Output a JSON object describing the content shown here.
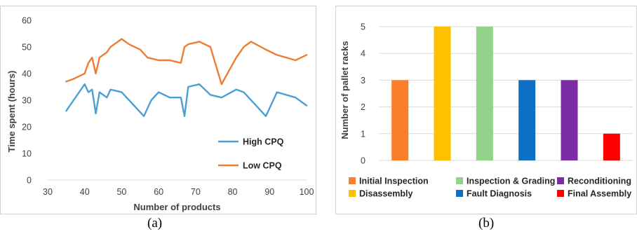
{
  "chart_data": [
    {
      "panel": "(a)",
      "type": "line",
      "xlabel": "Number of products",
      "ylabel": "Time spent (hours)",
      "xlim": [
        30,
        100
      ],
      "ylim": [
        0,
        60
      ],
      "xticks": [
        30,
        40,
        50,
        60,
        70,
        80,
        90,
        100
      ],
      "yticks": [
        0,
        10,
        20,
        30,
        40,
        50,
        60
      ],
      "grid": false,
      "legend": "bottom-right",
      "series": [
        {
          "name": "High CPQ",
          "color": "#4a9fd4",
          "x": [
            35,
            37,
            40,
            41,
            42,
            43,
            44,
            46,
            47,
            50,
            52,
            56,
            58,
            60,
            63,
            66,
            67,
            68,
            71,
            74,
            77,
            81,
            83,
            89,
            92,
            97,
            100
          ],
          "y": [
            26,
            30,
            36,
            33,
            34,
            25,
            33,
            31,
            34,
            33,
            30,
            24,
            30,
            33,
            31,
            31,
            24,
            35,
            36,
            32,
            31,
            34,
            33,
            24,
            33,
            31,
            28
          ]
        },
        {
          "name": "Low CPQ",
          "color": "#ed7d31",
          "x": [
            35,
            37,
            40,
            41,
            42,
            43,
            44,
            46,
            47,
            48,
            50,
            52,
            55,
            57,
            60,
            63,
            66,
            67,
            68,
            71,
            74,
            77,
            81,
            83,
            85,
            89,
            92,
            97,
            100
          ],
          "y": [
            37,
            38,
            40,
            44,
            46,
            40,
            46,
            48,
            50,
            51,
            53,
            51,
            49,
            46,
            45,
            45,
            44,
            50,
            51,
            52,
            50,
            36,
            46,
            50,
            52,
            49,
            47,
            45,
            47
          ]
        }
      ]
    },
    {
      "panel": "(b)",
      "type": "bar",
      "xlabel": "",
      "ylabel": "Number of pallet racks",
      "ylim": [
        0,
        5
      ],
      "yticks": [
        0,
        1,
        2,
        3,
        4,
        5
      ],
      "grid": true,
      "legend": "bottom",
      "categories": [
        "Initial Inspection",
        "Disassembly",
        "Inspection & Grading",
        "Fault Diagnosis",
        "Reconditioning",
        "Final Assembly"
      ],
      "values": [
        3,
        5,
        5,
        3,
        3,
        1
      ],
      "colors": [
        "#fb7f2b",
        "#ffc000",
        "#92d28a",
        "#0d71c3",
        "#7b2ba3",
        "#ff0000"
      ]
    }
  ]
}
